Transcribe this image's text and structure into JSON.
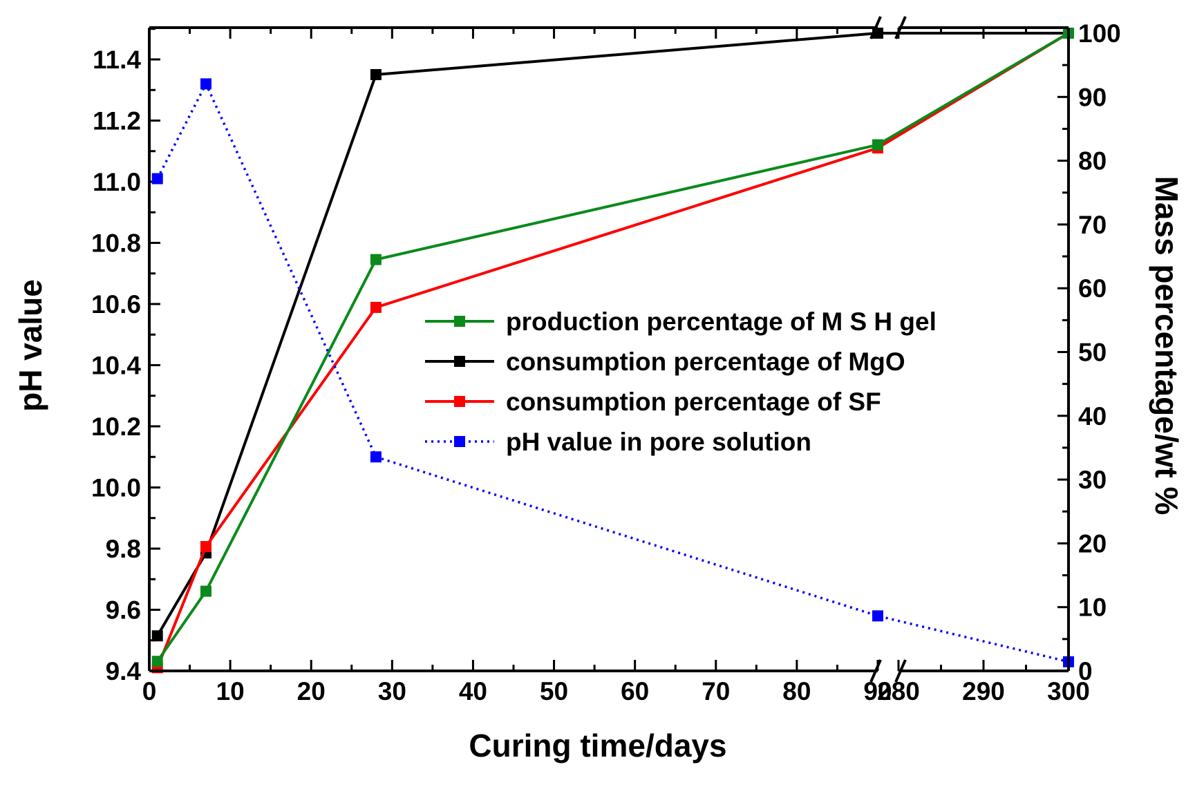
{
  "chart_data": {
    "type": "line",
    "xlabel": "Curing time/days",
    "ylabel_left": "pH value",
    "ylabel_right": "Mass percentage/wt %",
    "x_axis_break": [
      90,
      280
    ],
    "x_ticks": [
      "0",
      "10",
      "20",
      "30",
      "40",
      "50",
      "60",
      "70",
      "80",
      "90",
      "280",
      "290",
      "300"
    ],
    "x_tick_values": [
      0,
      10,
      20,
      30,
      40,
      50,
      60,
      70,
      80,
      90,
      280,
      290,
      300
    ],
    "y_left_ticks": [
      "9.4",
      "9.6",
      "9.8",
      "10.0",
      "10.2",
      "10.4",
      "10.6",
      "10.8",
      "11.0",
      "11.2",
      "11.4"
    ],
    "y_left_lim": [
      9.4,
      11.5
    ],
    "y_right_ticks": [
      "0",
      "10",
      "20",
      "30",
      "40",
      "50",
      "60",
      "70",
      "80",
      "90",
      "100"
    ],
    "y_right_lim": [
      0,
      100
    ],
    "legend_position": "center-right",
    "series": [
      {
        "name": "production percentage of M S H  gel",
        "axis": "right",
        "color": "#0b8a1c",
        "line_style": "solid",
        "x": [
          1,
          7,
          28,
          90,
          300
        ],
        "y": [
          1.5,
          12.5,
          64.5,
          82.5,
          100
        ]
      },
      {
        "name": "consumption percentage of MgO",
        "axis": "right",
        "color": "#000000",
        "line_style": "solid",
        "x": [
          1,
          7,
          28,
          90,
          300
        ],
        "y": [
          5.5,
          18.5,
          93.5,
          100,
          100
        ]
      },
      {
        "name": "consumption percentage of SF",
        "axis": "right",
        "color": "#ff0000",
        "line_style": "solid",
        "x": [
          1,
          7,
          28,
          90,
          300
        ],
        "y": [
          0.5,
          19.5,
          57,
          82,
          100
        ]
      },
      {
        "name": "pH value in pore solution",
        "axis": "left",
        "color": "#0000ff",
        "line_style": "dotted",
        "x": [
          1,
          7,
          28,
          90,
          300
        ],
        "y": [
          11.01,
          11.32,
          10.1,
          9.58,
          9.43
        ]
      }
    ]
  }
}
